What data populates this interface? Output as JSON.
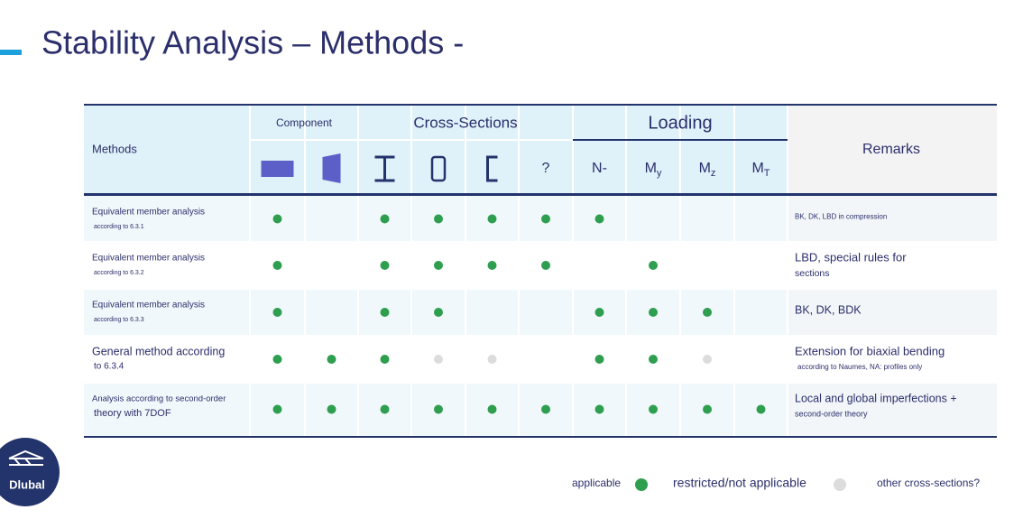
{
  "title": "Stability Analysis – Methods -",
  "table": {
    "methods_header": "Methods",
    "remarks_header": "Remarks",
    "groups": [
      {
        "label": "Component",
        "span": 2
      },
      {
        "label": "Cross-Sections",
        "span": 4
      },
      {
        "label": "Loading",
        "span": 4
      }
    ],
    "column_heads": [
      null,
      null,
      null,
      null,
      null,
      {
        "main": "?"
      },
      {
        "main": "N-"
      },
      {
        "main": "M",
        "sub": "y"
      },
      {
        "main": "M",
        "sub": "z"
      },
      {
        "main": "M",
        "sub": "T"
      }
    ],
    "rows": [
      {
        "method": [
          "Equivalent member analysis",
          "according to 6.3.1"
        ],
        "cells": [
          "applicable",
          null,
          "applicable",
          "applicable",
          "applicable",
          "applicable",
          "applicable",
          null,
          null,
          null
        ],
        "remarks": [
          "BK, DK, LBD in compression"
        ]
      },
      {
        "method": [
          "Equivalent member analysis",
          "according to 6.3.2"
        ],
        "cells": [
          "applicable",
          null,
          "applicable",
          "applicable",
          "applicable",
          "applicable",
          null,
          "applicable",
          null,
          null
        ],
        "remarks": [
          "LBD, special rules for",
          "sections"
        ]
      },
      {
        "method": [
          "Equivalent member analysis",
          "according to 6.3.3"
        ],
        "cells": [
          "applicable",
          null,
          "applicable",
          "applicable",
          null,
          null,
          "applicable",
          "applicable",
          "applicable",
          null
        ],
        "remarks": [
          "BK, DK, BDK"
        ]
      },
      {
        "method": [
          "General method according",
          "to 6.3.4"
        ],
        "cells": [
          "applicable",
          "applicable",
          "applicable",
          "restricted",
          "restricted",
          null,
          "applicable",
          "applicable",
          "restricted",
          null
        ],
        "remarks": [
          "Extension for biaxial bending",
          "according to Naumes, NA: profiles only"
        ]
      },
      {
        "method": [
          "Analysis according to second-order",
          "theory with 7DOF"
        ],
        "cells": [
          "applicable",
          "applicable",
          "applicable",
          "applicable",
          "applicable",
          "applicable",
          "applicable",
          "applicable",
          "applicable",
          "applicable"
        ],
        "remarks": [
          "Local and global imperfections +",
          "second-order theory"
        ]
      }
    ]
  },
  "legend": [
    {
      "key": "applicable",
      "label": "applicable",
      "color": "#2e9e4f"
    },
    {
      "key": "restricted",
      "label": "restricted/not applicable",
      "color": "#dcdcdc"
    },
    {
      "label": "other cross-sections?"
    }
  ],
  "logo": "Dlubal"
}
